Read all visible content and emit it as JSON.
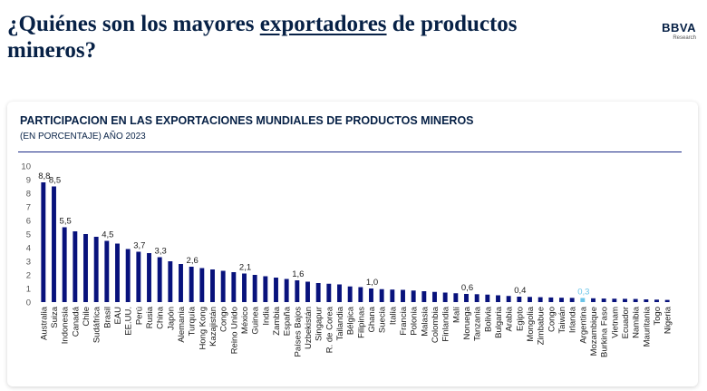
{
  "header": {
    "title_part1": "¿Quiénes son los mayores ",
    "title_underlined": "exportadores",
    "title_part2": " de productos mineros?",
    "logo_brand": "BBVA",
    "logo_sub": "Research"
  },
  "colors": {
    "bar": "#08127c",
    "highlight": "#6ac4e8",
    "text": "#072146"
  },
  "chart_data": {
    "type": "bar",
    "title": "PARTICIPACION EN LAS EXPORTACIONES MUNDIALES DE PRODUCTOS MINEROS",
    "subtitle": "(EN PORCENTAJE) AÑO 2023",
    "xlabel": "",
    "ylabel": "",
    "ylim": [
      0,
      10
    ],
    "yticks": [
      "0",
      "1",
      "2",
      "3",
      "4",
      "5",
      "6",
      "7",
      "8",
      "9",
      "10"
    ],
    "grid": false,
    "highlight_category": "Argentina",
    "categories": [
      "Australia",
      "Suiza",
      "Indonesia",
      "Canadá",
      "Chile",
      "Sudáfrica",
      "Brasil",
      "EAU",
      "EE.UU.",
      "Perú",
      "Rusia",
      "China",
      "Japón",
      "Alemania",
      "Turquía",
      "Hong Kong",
      "Kazajistán",
      "Congo",
      "Reino Unido",
      "México",
      "Guinea",
      "India",
      "Zambia",
      "España",
      "Países Bajos",
      "Uzbekistán",
      "Singapur",
      "R. de Corea",
      "Tailandia",
      "Bélgica",
      "Filipinas",
      "Ghana",
      "Suecia",
      "Italia",
      "Francia",
      "Polonia",
      "Malasia",
      "Colombia",
      "Finlandia",
      "Malí",
      "Noruega",
      "Tanzania",
      "Bolivia",
      "Bulgaria",
      "Arabia",
      "Egipto",
      "Mongolia",
      "Zimbabue",
      "Congo",
      "Taiwán",
      "Irlanda",
      "Argentina",
      "Mozambique",
      "Burkina Faso",
      "Vietnam",
      "Ecuador",
      "Namibia",
      "Mauritania",
      "Togo",
      "Nigeria"
    ],
    "values": [
      8.8,
      8.5,
      5.5,
      5.2,
      5.0,
      4.8,
      4.5,
      4.3,
      3.9,
      3.7,
      3.6,
      3.3,
      3.0,
      2.8,
      2.6,
      2.5,
      2.4,
      2.3,
      2.2,
      2.1,
      2.0,
      1.9,
      1.8,
      1.7,
      1.6,
      1.5,
      1.4,
      1.35,
      1.3,
      1.15,
      1.1,
      1.0,
      0.95,
      0.92,
      0.9,
      0.85,
      0.8,
      0.75,
      0.7,
      0.65,
      0.6,
      0.58,
      0.55,
      0.5,
      0.45,
      0.4,
      0.38,
      0.36,
      0.34,
      0.32,
      0.31,
      0.3,
      0.28,
      0.26,
      0.25,
      0.24,
      0.23,
      0.2,
      0.18,
      0.16
    ],
    "data_labels": [
      {
        "category": "Australia",
        "label": "8,8"
      },
      {
        "category": "Suiza",
        "label": "8,5"
      },
      {
        "category": "Indonesia",
        "label": "5,5"
      },
      {
        "category": "Brasil",
        "label": "4,5"
      },
      {
        "category": "Perú",
        "label": "3,7"
      },
      {
        "category": "China",
        "label": "3,3"
      },
      {
        "category": "Turquía",
        "label": "2,6"
      },
      {
        "category": "México",
        "label": "2,1"
      },
      {
        "category": "Países Bajos",
        "label": "1,6"
      },
      {
        "category": "Ghana",
        "label": "1,0"
      },
      {
        "category": "Noruega",
        "label": "0,6"
      },
      {
        "category": "Egipto",
        "label": "0,4"
      },
      {
        "category": "Argentina",
        "label": "0,3"
      }
    ]
  }
}
